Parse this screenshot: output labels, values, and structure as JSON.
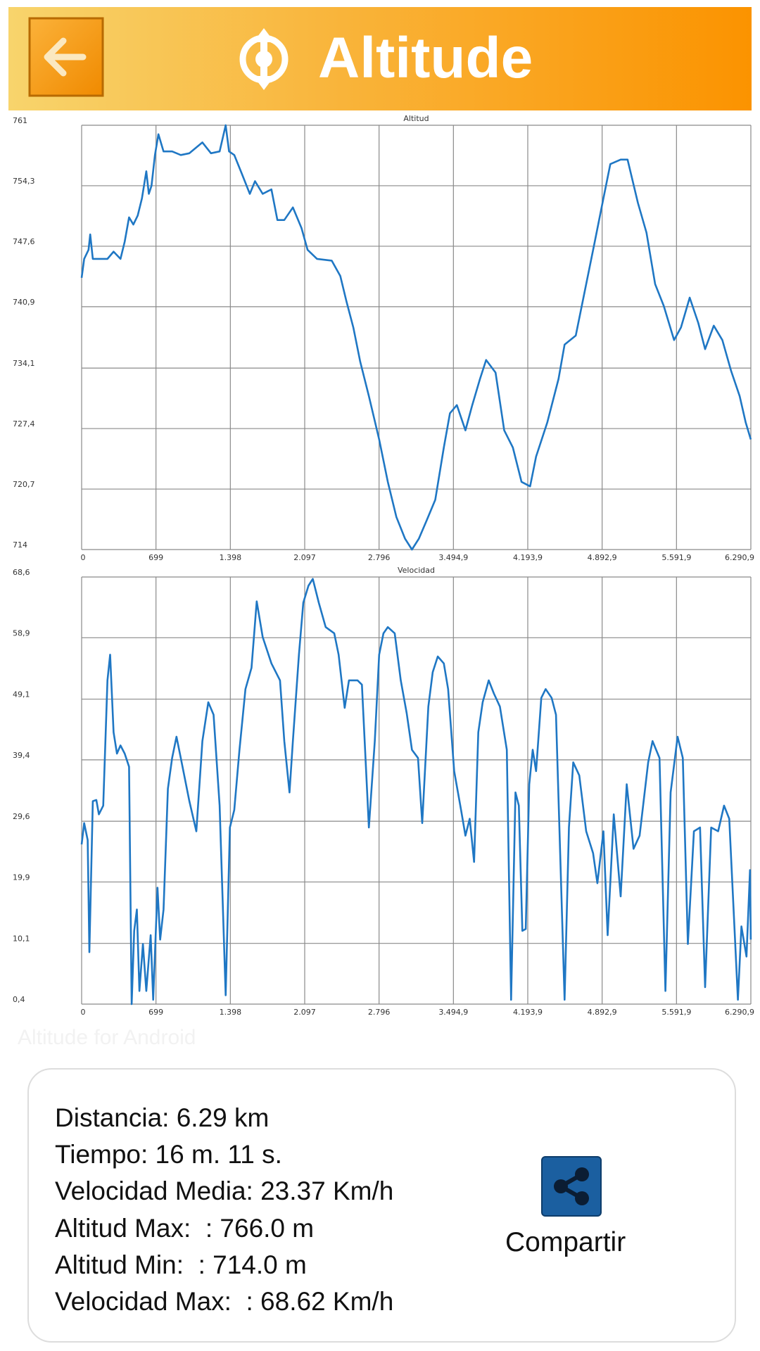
{
  "header": {
    "title": "Altitude"
  },
  "chart_data": [
    {
      "type": "line",
      "title": "Altitud",
      "grid": true,
      "xlim": [
        0,
        6290.9
      ],
      "ylim": [
        714,
        761
      ],
      "xticks": [
        0,
        699,
        {
          "value": 1398,
          "label": "1.398"
        },
        {
          "value": 2097,
          "label": "2.097"
        },
        {
          "value": 2796,
          "label": "2.796"
        },
        {
          "value": 3494.9,
          "label": "3.494,9"
        },
        {
          "value": 4193.9,
          "label": "4.193,9"
        },
        {
          "value": 4892.9,
          "label": "4.892,9"
        },
        {
          "value": 5591.9,
          "label": "5.591,9"
        },
        {
          "value": 6290.9,
          "label": "6.290,9"
        }
      ],
      "yticks": [
        714,
        {
          "value": 720.7,
          "label": "720,7"
        },
        {
          "value": 727.4,
          "label": "727,4"
        },
        {
          "value": 734.1,
          "label": "734,1"
        },
        {
          "value": 740.9,
          "label": "740,9"
        },
        {
          "value": 747.6,
          "label": "747,6"
        },
        {
          "value": 754.3,
          "label": "754,3"
        },
        761
      ],
      "x": [
        0,
        24,
        65,
        81,
        105,
        162,
        243,
        300,
        365,
        405,
        446,
        486,
        527,
        567,
        608,
        632,
        657,
        689,
        722,
        770,
        851,
        932,
        1013,
        1135,
        1216,
        1297,
        1354,
        1386,
        1435,
        1500,
        1581,
        1630,
        1702,
        1784,
        1840,
        1905,
        1986,
        2067,
        2124,
        2213,
        2351,
        2432,
        2489,
        2554,
        2619,
        2700,
        2797,
        2878,
        2959,
        3040,
        3105,
        3170,
        3243,
        3324,
        3405,
        3462,
        3527,
        3608,
        3672,
        3745,
        3802,
        3891,
        3972,
        4054,
        4135,
        4216,
        4272,
        4378,
        4483,
        4540,
        4645,
        4743,
        4824,
        4905,
        4970,
        5067,
        5132,
        5229,
        5310,
        5391,
        5472,
        5569,
        5634,
        5716,
        5797,
        5861,
        5942,
        6023,
        6105,
        6186,
        6242,
        6290
      ],
      "series": [
        {
          "color": "#1f77c4",
          "values": [
            744.1,
            746.2,
            747.2,
            748.9,
            746.2,
            746.2,
            746.2,
            747.0,
            746.2,
            748.1,
            750.8,
            750.0,
            751.0,
            752.9,
            755.9,
            753.4,
            754.3,
            757.7,
            760.0,
            758.1,
            758.1,
            757.7,
            757.9,
            759.1,
            757.9,
            758.1,
            761,
            758.1,
            757.7,
            755.8,
            753.4,
            754.8,
            753.4,
            753.9,
            750.5,
            750.5,
            751.9,
            749.6,
            747.2,
            746.2,
            746.0,
            744.3,
            741.5,
            738.6,
            734.8,
            731.0,
            726.2,
            721.5,
            717.6,
            715.2,
            714.0,
            715.2,
            717.2,
            719.5,
            725.3,
            729.1,
            730.0,
            727.2,
            730.0,
            732.9,
            735.0,
            733.6,
            727.2,
            725.3,
            721.5,
            721.0,
            724.3,
            728.1,
            732.9,
            736.7,
            737.7,
            743.4,
            748.1,
            752.9,
            756.7,
            757.2,
            757.2,
            752.4,
            749.1,
            743.4,
            741.0,
            737.2,
            738.6,
            741.9,
            739.1,
            736.2,
            738.8,
            737.2,
            733.8,
            731.0,
            728.1,
            726.2
          ]
        }
      ]
    },
    {
      "type": "line",
      "title": "Velocidad",
      "grid": true,
      "xlim": [
        0,
        6290.9
      ],
      "ylim": [
        0.4,
        68.6
      ],
      "xticks": [
        0,
        699,
        {
          "value": 1398,
          "label": "1.398"
        },
        {
          "value": 2097,
          "label": "2.097"
        },
        {
          "value": 2796,
          "label": "2.796"
        },
        {
          "value": 3494.9,
          "label": "3.494,9"
        },
        {
          "value": 4193.9,
          "label": "4.193,9"
        },
        {
          "value": 4892.9,
          "label": "4.892,9"
        },
        {
          "value": 5591.9,
          "label": "5.591,9"
        },
        {
          "value": 6290.9,
          "label": "6.290,9"
        }
      ],
      "yticks": [
        {
          "value": 0.4,
          "label": "0,4"
        },
        {
          "value": 10.1,
          "label": "10,1"
        },
        {
          "value": 19.9,
          "label": "19,9"
        },
        {
          "value": 29.6,
          "label": "29,6"
        },
        {
          "value": 39.4,
          "label": "39,4"
        },
        {
          "value": 49.1,
          "label": "49,1"
        },
        {
          "value": 58.9,
          "label": "58,9"
        },
        {
          "value": 68.6,
          "label": "68,6"
        }
      ],
      "x": [
        0,
        24,
        57,
        73,
        105,
        138,
        162,
        203,
        243,
        268,
        300,
        332,
        365,
        405,
        446,
        470,
        494,
        519,
        543,
        576,
        608,
        649,
        673,
        713,
        738,
        770,
        811,
        851,
        892,
        932,
        1013,
        1078,
        1135,
        1191,
        1240,
        1297,
        1354,
        1394,
        1435,
        1484,
        1540,
        1597,
        1646,
        1702,
        1784,
        1865,
        1905,
        1954,
        1986,
        2043,
        2084,
        2132,
        2173,
        2229,
        2294,
        2375,
        2416,
        2473,
        2513,
        2594,
        2635,
        2700,
        2756,
        2797,
        2837,
        2878,
        2943,
        3000,
        3056,
        3105,
        3162,
        3202,
        3259,
        3300,
        3348,
        3405,
        3445,
        3502,
        3567,
        3608,
        3648,
        3689,
        3729,
        3770,
        3827,
        3875,
        3932,
        3997,
        4037,
        4078,
        4110,
        4143,
        4175,
        4208,
        4240,
        4272,
        4321,
        4362,
        4418,
        4459,
        4540,
        4581,
        4621,
        4678,
        4743,
        4808,
        4848,
        4905,
        4945,
        5002,
        5067,
        5124,
        5188,
        5245,
        5326,
        5367,
        5432,
        5488,
        5537,
        5602,
        5651,
        5699,
        5756,
        5813,
        5861,
        5918,
        5983,
        6039,
        6088,
        6169,
        6202,
        6250,
        6283,
        6290
      ],
      "series": [
        {
          "color": "#1f77c4",
          "values": [
            25.9,
            29.3,
            26.6,
            8.7,
            32.8,
            33.0,
            30.7,
            32.1,
            52.1,
            56.2,
            43.8,
            40.4,
            41.7,
            40.4,
            38.3,
            0.4,
            12.1,
            15.5,
            2.5,
            10.0,
            2.5,
            11.4,
            1.1,
            19.0,
            10.7,
            15.5,
            34.8,
            39.7,
            43.1,
            39.7,
            32.8,
            28.0,
            42.4,
            48.6,
            46.6,
            32.1,
            1.8,
            28.6,
            31.4,
            41.0,
            50.7,
            54.1,
            64.7,
            59.0,
            54.8,
            52.1,
            42.4,
            34.2,
            42.4,
            56.2,
            64.5,
            67.2,
            68.3,
            64.5,
            60.6,
            59.6,
            56.2,
            47.7,
            52.1,
            52.1,
            51.4,
            28.6,
            42.4,
            56.2,
            59.6,
            60.6,
            59.6,
            52.1,
            46.8,
            41.0,
            39.7,
            29.3,
            47.9,
            53.4,
            55.9,
            54.8,
            50.7,
            37.6,
            31.4,
            27.3,
            30.0,
            23.1,
            43.8,
            48.6,
            52.1,
            50.0,
            47.9,
            41.0,
            1.1,
            34.2,
            32.1,
            12.1,
            12.4,
            35.5,
            41.0,
            37.6,
            49.3,
            50.7,
            49.3,
            46.6,
            1.1,
            28.6,
            39.0,
            36.9,
            28.0,
            24.5,
            19.7,
            28.0,
            11.4,
            30.7,
            17.6,
            35.5,
            25.2,
            27.3,
            39.0,
            42.4,
            39.7,
            2.5,
            34.2,
            43.1,
            39.7,
            10.0,
            28.0,
            28.6,
            3.1,
            28.6,
            28.0,
            32.1,
            30.0,
            1.1,
            12.8,
            8.0,
            21.8,
            10.7
          ]
        }
      ]
    }
  ],
  "watermark": "Altitude for Android",
  "stats": [
    "Distancia: 6.29 km",
    "Tiempo: 16 m. 11 s.",
    "Velocidad Media: 23.37 Km/h",
    "Altitud Max:  : 766.0 m",
    "Altitud Min:  : 714.0 m",
    "Velocidad Max:  : 68.62 Km/h"
  ],
  "share_button": {
    "label": "Compartir"
  }
}
